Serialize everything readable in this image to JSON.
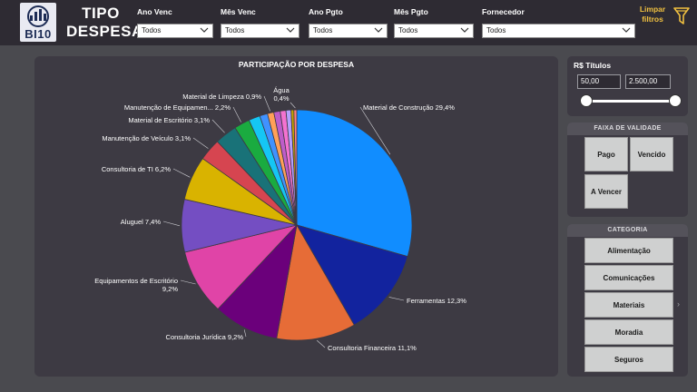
{
  "header": {
    "logo_text": "BI10",
    "title_line1": "TIPO",
    "title_line2": "DESPESA",
    "clear_filters_line1": "Limpar",
    "clear_filters_line2": "filtros"
  },
  "filters": [
    {
      "label": "Ano Venc",
      "value": "Todos"
    },
    {
      "label": "Mês Venc",
      "value": "Todos"
    },
    {
      "label": "Ano Pgto",
      "value": "Todos"
    },
    {
      "label": "Mês Pgto",
      "value": "Todos"
    },
    {
      "label": "Fornecedor",
      "value": "Todos"
    }
  ],
  "chart_data": {
    "type": "pie",
    "title": "PARTICIPAÇÃO POR DESPESA",
    "slices": [
      {
        "label": "Material de Construção",
        "pct_label": "29,4%",
        "value": 29.4,
        "color": "#118dff"
      },
      {
        "label": "Ferramentas",
        "pct_label": "12,3%",
        "value": 12.3,
        "color": "#12239e"
      },
      {
        "label": "Consultoria Financeira",
        "pct_label": "11,1%",
        "value": 11.1,
        "color": "#e66c37"
      },
      {
        "label": "Consultoria Jurídica",
        "pct_label": "9,2%",
        "value": 9.2,
        "color": "#6b007b"
      },
      {
        "label": "Equipamentos de Escritório",
        "pct_label": "9,2%",
        "value": 9.2,
        "color": "#e044a7"
      },
      {
        "label": "Aluguel",
        "pct_label": "7,4%",
        "value": 7.4,
        "color": "#744ec2"
      },
      {
        "label": "Consultoria de TI",
        "pct_label": "6,2%",
        "value": 6.2,
        "color": "#d9b300"
      },
      {
        "label": "Manutenção de Veículo",
        "pct_label": "3,1%",
        "value": 3.1,
        "color": "#d64550"
      },
      {
        "label": "Material de Escritório",
        "pct_label": "3,1%",
        "value": 3.1,
        "color": "#197278"
      },
      {
        "label": "Manutenção de Equipamen...",
        "pct_label": "2,2%",
        "value": 2.2,
        "color": "#1aab40"
      },
      {
        "label": "",
        "pct_label": "",
        "value": 1.6,
        "color": "#15c6f4"
      },
      {
        "label": "",
        "pct_label": "",
        "value": 1.1,
        "color": "#4092ff"
      },
      {
        "label": "Material de Limpeza",
        "pct_label": "0,9%",
        "value": 0.9,
        "color": "#ffa058"
      },
      {
        "label": "",
        "pct_label": "",
        "value": 0.9,
        "color": "#be5dc9"
      },
      {
        "label": "",
        "pct_label": "",
        "value": 0.8,
        "color": "#f472d0"
      },
      {
        "label": "",
        "pct_label": "",
        "value": 0.7,
        "color": "#b5a1ff"
      },
      {
        "label": "",
        "pct_label": "",
        "value": 0.4,
        "color": "#c4a200"
      },
      {
        "label": "Água",
        "pct_label": "0,4%",
        "value": 0.4,
        "color": "#ff8080"
      }
    ]
  },
  "range_filter": {
    "title": "R$ Títulos",
    "min_value": "50,00",
    "max_value": "2.500,00"
  },
  "validity": {
    "header": "FAIXA DE VALIDADE",
    "options": [
      "Pago",
      "Vencido",
      "A Vencer"
    ]
  },
  "category": {
    "header": "CATEGORIA",
    "options": [
      "Alimentação",
      "Comunicações",
      "Materiais",
      "Moradia",
      "Seguros"
    ]
  }
}
